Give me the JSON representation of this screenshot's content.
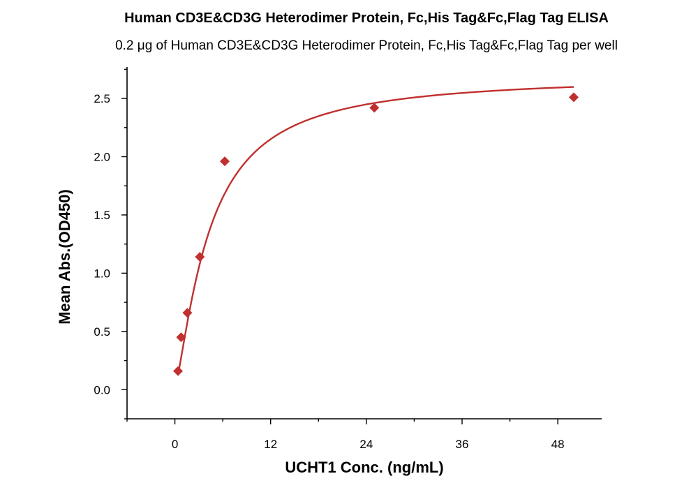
{
  "chart_data": {
    "type": "scatter",
    "title": "Human CD3E&CD3G Heterodimer Protein, Fc,His Tag&Fc,Flag Tag ELISA",
    "subtitle": "0.2 μg of Human CD3E&CD3G Heterodimer Protein, Fc,His Tag&Fc,Flag Tag per well",
    "xlabel": "UCHT1 Conc. (ng/mL)",
    "ylabel": "Mean Abs.(OD450)",
    "xlim": [
      -6,
      53.5
    ],
    "ylim": [
      -0.25,
      2.77
    ],
    "x_ticks": [
      0,
      12,
      24,
      36,
      48
    ],
    "x_tick_labels": [
      "0",
      "12",
      "24",
      "36",
      "48"
    ],
    "y_ticks": [
      0.0,
      0.5,
      1.0,
      1.5,
      2.0,
      2.5
    ],
    "y_tick_labels": [
      "0.0",
      "0.5",
      "1.0",
      "1.5",
      "2.0",
      "2.5"
    ],
    "grid": false,
    "legend": false,
    "series": [
      {
        "name": "UCHT1",
        "marker": "diamond",
        "color": "#c0302f",
        "x": [
          0.39,
          0.78,
          1.56,
          3.13,
          6.25,
          25,
          50
        ],
        "y": [
          0.16,
          0.45,
          0.66,
          1.14,
          1.96,
          2.42,
          2.51
        ]
      }
    ],
    "fit_curve": {
      "name": "fitted curve",
      "model": "4PL",
      "color": "#c0302f",
      "params": {
        "A": 0.02,
        "D": 2.7,
        "C": 4.3,
        "B": 1.32
      }
    }
  }
}
